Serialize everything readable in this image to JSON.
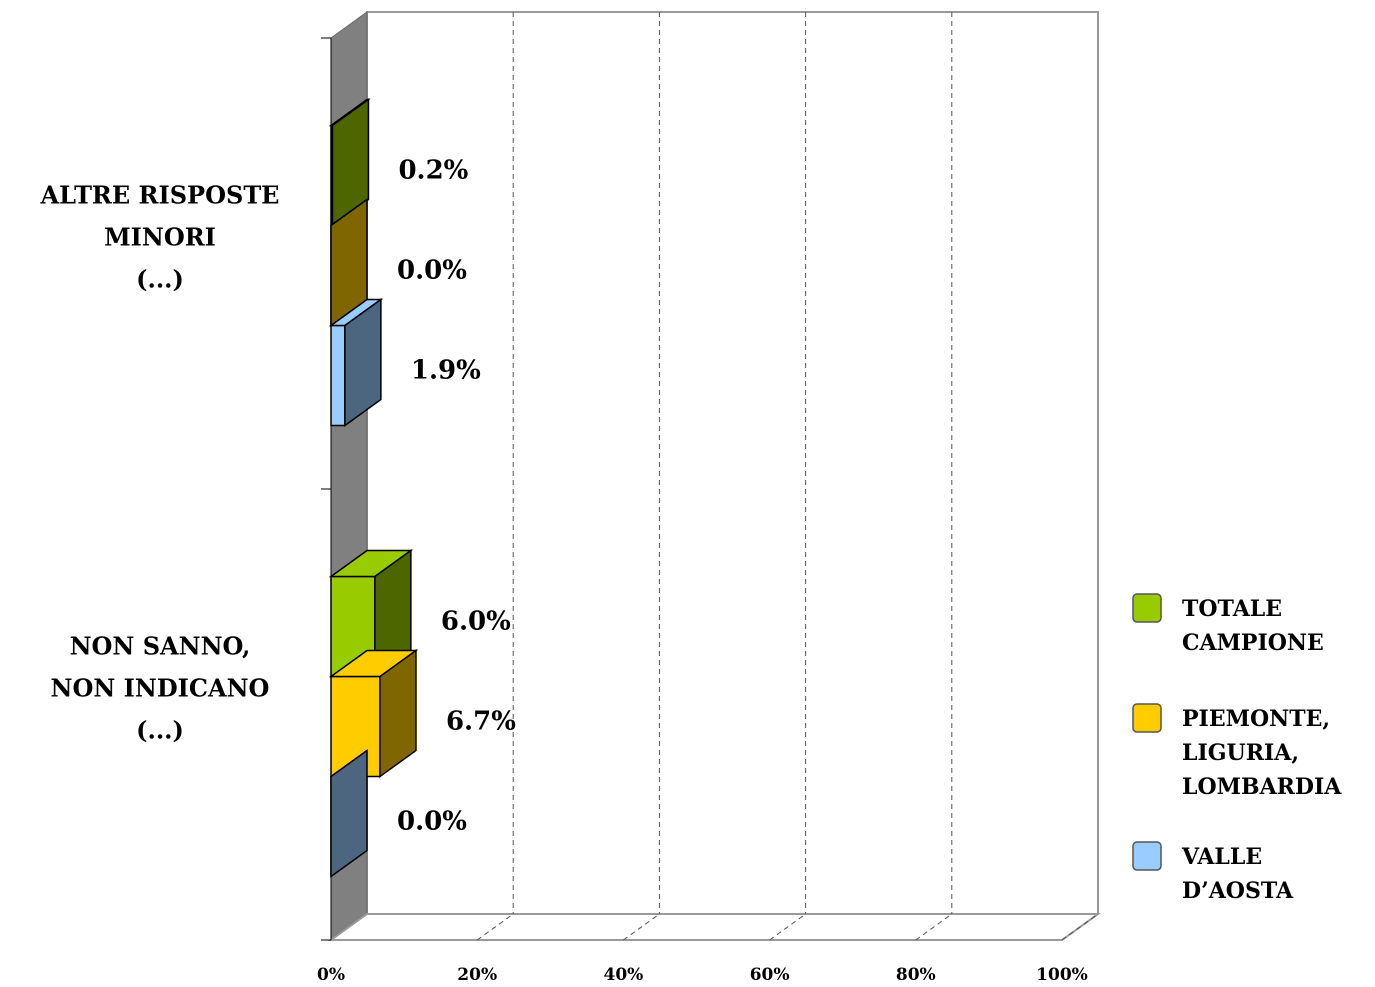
{
  "chart_data": {
    "type": "bar",
    "orientation": "horizontal",
    "three_d": true,
    "categories": [
      [
        "ALTRE RISPOSTE",
        "MINORI",
        "(...)"
      ],
      [
        "NON SANNO,",
        "NON INDICANO",
        "(...)"
      ]
    ],
    "series": [
      {
        "name": "TOTALE CAMPIONE",
        "legend_lines": [
          "TOTALE",
          "CAMPIONE"
        ],
        "color": "#99cc00",
        "side_color": "#4d6600",
        "values": [
          0.2,
          6.0
        ]
      },
      {
        "name": "PIEMONTE, LIGURIA, LOMBARDIA",
        "legend_lines": [
          "PIEMONTE,",
          "LIGURIA,",
          "LOMBARDIA"
        ],
        "color": "#ffcc00",
        "side_color": "#806600",
        "values": [
          0.0,
          6.7
        ]
      },
      {
        "name": "VALLE D’AOSTA",
        "legend_lines": [
          "VALLE",
          "D’AOSTA"
        ],
        "color": "#99ccff",
        "side_color": "#4d6680",
        "values": [
          1.9,
          0.0
        ]
      }
    ],
    "value_labels": [
      [
        "0.2%",
        "6.0%"
      ],
      [
        "0.0%",
        "6.7%"
      ],
      [
        "1.9%",
        "0.0%"
      ]
    ],
    "x_ticks": [
      "0%",
      "20%",
      "40%",
      "60%",
      "80%",
      "100%"
    ],
    "xlim": [
      0,
      100
    ],
    "grid": "vertical dashed",
    "legend_position": "right"
  }
}
